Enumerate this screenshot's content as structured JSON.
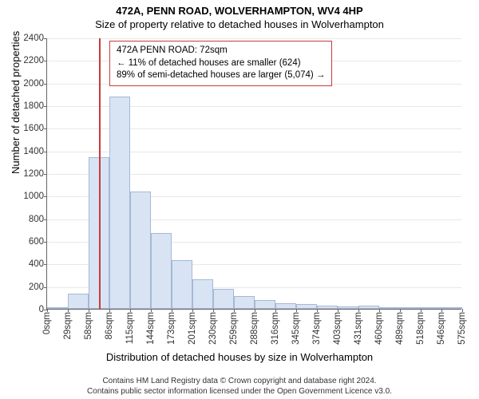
{
  "title": "472A, PENN ROAD, WOLVERHAMPTON, WV4 4HP",
  "subtitle": "Size of property relative to detached houses in Wolverhampton",
  "ylabel": "Number of detached properties",
  "xlabel": "Distribution of detached houses by size in Wolverhampton",
  "chart": {
    "type": "histogram",
    "ylim": [
      0,
      2400
    ],
    "ytick_step": 200,
    "xtick_labels": [
      "0sqm",
      "29sqm",
      "58sqm",
      "86sqm",
      "115sqm",
      "144sqm",
      "173sqm",
      "201sqm",
      "230sqm",
      "259sqm",
      "288sqm",
      "316sqm",
      "345sqm",
      "374sqm",
      "403sqm",
      "431sqm",
      "460sqm",
      "489sqm",
      "518sqm",
      "546sqm",
      "575sqm"
    ],
    "bar_color": "#d8e4f3",
    "bar_border_color": "#a6b8d6",
    "grid_color": "#e8e8e8",
    "axis_color": "#666666",
    "background": "#ffffff",
    "font_size_ticks": 11.5,
    "font_size_labels": 13,
    "values": [
      0,
      135,
      1340,
      1880,
      1040,
      670,
      430,
      260,
      175,
      110,
      80,
      50,
      45,
      30,
      20,
      25,
      15,
      10,
      5,
      8
    ]
  },
  "marker": {
    "position_sqm": 72,
    "max_sqm": 575,
    "color": "#c93a3a"
  },
  "annotation": {
    "line1": "472A PENN ROAD: 72sqm",
    "line2": "← 11% of detached houses are smaller (624)",
    "line3": "89% of semi-detached houses are larger (5,074) →",
    "border_color": "#c93a3a"
  },
  "footer": {
    "line1": "Contains HM Land Registry data © Crown copyright and database right 2024.",
    "line2": "Contains public sector information licensed under the Open Government Licence v3.0."
  }
}
